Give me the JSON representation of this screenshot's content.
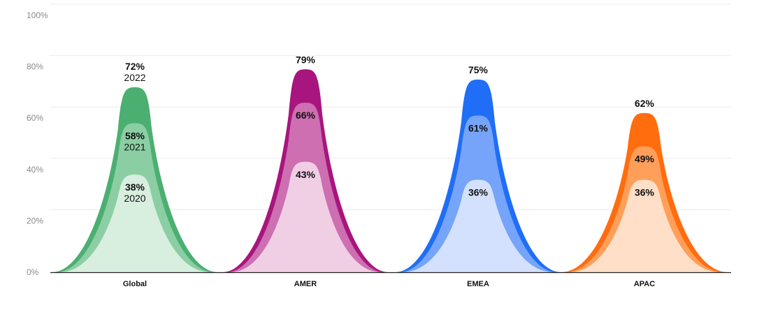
{
  "chart_data": {
    "type": "area",
    "title": "",
    "xlabel": "",
    "ylabel": "",
    "ylim": [
      0,
      100
    ],
    "yticks": [
      "0%",
      "20%",
      "40%",
      "60%",
      "80%",
      "100%"
    ],
    "grid": true,
    "categories": [
      "Global",
      "AMER",
      "EMEA",
      "APAC"
    ],
    "series": [
      {
        "year": "2022",
        "values": [
          72,
          79,
          75,
          62
        ]
      },
      {
        "year": "2021",
        "values": [
          58,
          66,
          61,
          49
        ]
      },
      {
        "year": "2020",
        "values": [
          38,
          43,
          36,
          36
        ]
      }
    ],
    "value_labels": {
      "2022": [
        "72%",
        "79%",
        "75%",
        "62%"
      ],
      "2021": [
        "58%",
        "66%",
        "61%",
        "49%"
      ],
      "2020": [
        "38%",
        "43%",
        "36%",
        "36%"
      ]
    },
    "year_labels": [
      "2022",
      "2021",
      "2020"
    ],
    "colors": {
      "Global": [
        "#4caf72",
        "#8ccea4",
        "#d8eedf"
      ],
      "AMER": [
        "#a8157e",
        "#cd6fb1",
        "#f0cfe5"
      ],
      "EMEA": [
        "#1f6ef5",
        "#76a4fb",
        "#d3e1fe"
      ],
      "APAC": [
        "#ff6d0f",
        "#ff9f5a",
        "#ffdfc7"
      ]
    }
  }
}
